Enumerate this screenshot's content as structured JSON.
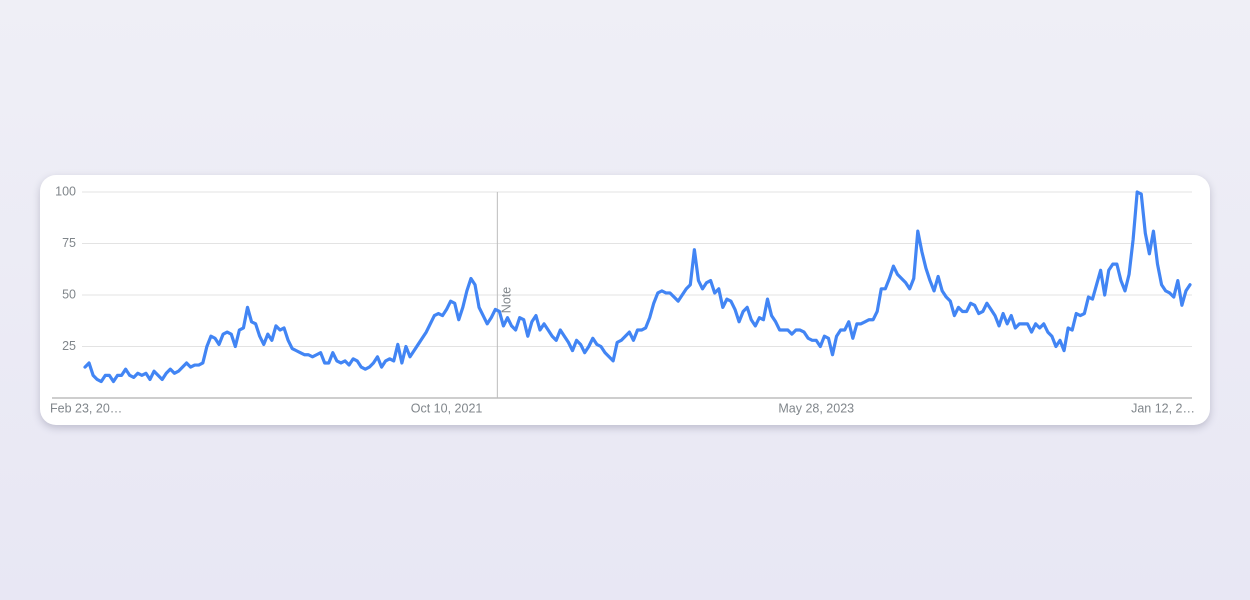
{
  "chart_data": {
    "type": "line",
    "values": [
      15,
      17,
      11,
      9,
      8,
      11,
      11,
      8,
      11,
      11,
      14,
      11,
      10,
      12,
      11,
      12,
      9,
      13,
      11,
      9,
      12,
      14,
      12,
      13,
      15,
      17,
      15,
      16,
      16,
      17,
      25,
      30,
      29,
      26,
      31,
      32,
      31,
      25,
      33,
      34,
      44,
      37,
      36,
      30,
      26,
      31,
      28,
      35,
      33,
      34,
      28,
      24,
      23,
      22,
      21,
      21,
      20,
      21,
      22,
      17,
      17,
      22,
      18,
      17,
      18,
      16,
      19,
      18,
      15,
      14,
      15,
      17,
      20,
      15,
      18,
      19,
      18,
      26,
      17,
      25,
      20,
      23,
      26,
      29,
      32,
      36,
      40,
      41,
      40,
      43,
      47,
      46,
      38,
      44,
      52,
      58,
      55,
      44,
      40,
      36,
      39,
      43,
      42,
      35,
      39,
      35,
      33,
      39,
      38,
      30,
      37,
      40,
      33,
      36,
      33,
      30,
      28,
      33,
      30,
      27,
      23,
      28,
      26,
      22,
      25,
      29,
      26,
      25,
      22,
      20,
      18,
      27,
      28,
      30,
      32,
      28,
      33,
      33,
      34,
      39,
      46,
      51,
      52,
      51,
      51,
      49,
      47,
      50,
      53,
      55,
      72,
      57,
      53,
      56,
      57,
      51,
      53,
      44,
      48,
      47,
      43,
      37,
      42,
      44,
      38,
      35,
      39,
      38,
      48,
      40,
      37,
      33,
      33,
      33,
      31,
      33,
      33,
      32,
      29,
      28,
      28,
      25,
      30,
      29,
      21,
      30,
      33,
      33,
      37,
      29,
      36,
      36,
      37,
      38,
      38,
      42,
      53,
      53,
      58,
      64,
      60,
      58,
      56,
      53,
      58,
      81,
      71,
      63,
      57,
      52,
      59,
      52,
      49,
      47,
      40,
      44,
      42,
      42,
      46,
      45,
      41,
      42,
      46,
      43,
      40,
      35,
      41,
      36,
      40,
      34,
      36,
      36,
      36,
      32,
      36,
      34,
      36,
      32,
      30,
      25,
      28,
      23,
      34,
      33,
      41,
      40,
      41,
      49,
      48,
      55,
      62,
      50,
      62,
      65,
      65,
      57,
      52,
      60,
      77,
      100,
      99,
      80,
      70,
      81,
      65,
      55,
      52,
      51,
      49,
      57,
      45,
      52,
      55
    ],
    "color": "#4285f4",
    "ylim": [
      0,
      100
    ],
    "yticks": [
      25,
      50,
      75,
      100
    ],
    "grid": true,
    "xticks": [
      {
        "value": 0,
        "label": "Feb 23, 20…"
      },
      {
        "value": 89,
        "label": "Oct 10, 2021"
      },
      {
        "value": 180,
        "label": "May 28, 2023"
      },
      {
        "value": 270,
        "label": "Jan 12, 2…"
      }
    ],
    "annotations": [
      {
        "x": 101.5,
        "label": "Note"
      }
    ]
  }
}
